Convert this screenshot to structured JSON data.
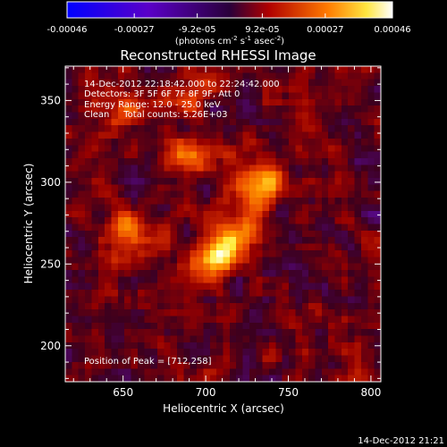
{
  "chart_data": {
    "type": "heatmap",
    "title": "Reconstructed RHESSI Image",
    "xlabel": "Heliocentric X (arcsec)",
    "ylabel": "Heliocentric Y (arcsec)",
    "xlim": [
      615,
      806
    ],
    "ylim": [
      178,
      371
    ],
    "xticks": [
      650,
      700,
      750,
      800
    ],
    "yticks": [
      200,
      250,
      300,
      350
    ],
    "colorbar": {
      "tick_labels": [
        "-0.00046",
        "-0.00027",
        "-9.2e-05",
        "9.2e-05",
        "0.00027",
        "0.00046"
      ],
      "tick_values": [
        -0.00046,
        -0.00027,
        -9.2e-05,
        9.2e-05,
        0.00027,
        0.00046
      ],
      "range": [
        -0.00046,
        0.00046
      ],
      "unit_label": "(photons cm",
      "unit_sup1": "-2",
      "unit_mid": " s",
      "unit_sup2": "-1",
      "unit_mid2": " asec",
      "unit_sup3": "-2",
      "unit_end": ")"
    },
    "annotations": [
      "14-Dec-2012 22:18:42.000 to 22:24:42.000",
      "Detectors: 3F 5F 6F 7F 8F 9F, Att 0",
      "Energy Range: 12.0 - 25.0 keV",
      "Clean     Total counts: 5.26E+03"
    ],
    "peak_label": "Position of Peak = [712,258]",
    "peak": [
      712,
      258
    ],
    "sources": [
      {
        "x": 712,
        "y": 260,
        "peak_value": 0.00046
      },
      {
        "x": 732,
        "y": 300,
        "peak_value": 0.00036
      },
      {
        "x": 655,
        "y": 270,
        "peak_value": 0.00024
      },
      {
        "x": 690,
        "y": 315,
        "peak_value": 0.0002
      },
      {
        "x": 690,
        "y": 355,
        "peak_value": 0.00018
      },
      {
        "x": 650,
        "y": 345,
        "peak_value": 0.00016
      }
    ],
    "colormap": "black-purple-red-yellow-white"
  },
  "footer_timestamp": "14-Dec-2012 21:21"
}
